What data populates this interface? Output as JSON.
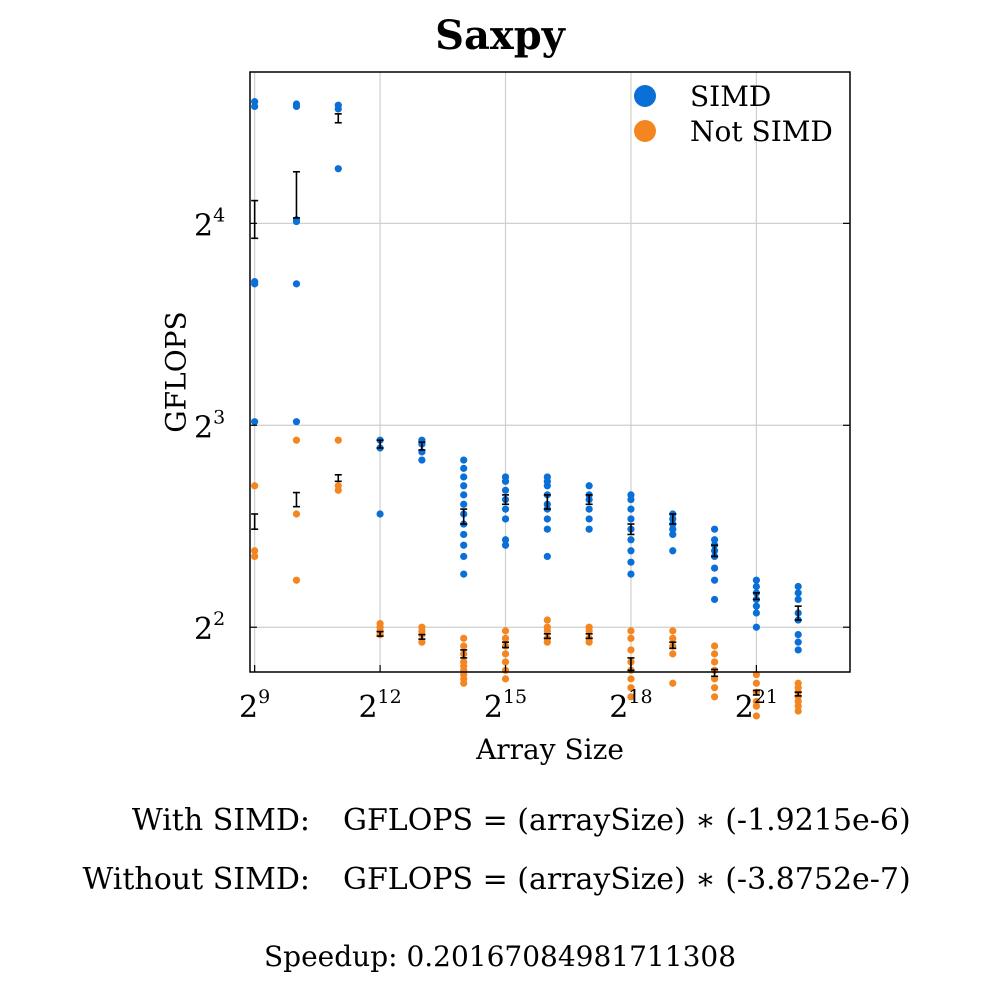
{
  "chart_data": {
    "type": "scatter",
    "title": "Saxpy",
    "xlabel": "Array Size",
    "ylabel": "GFLOPS",
    "x_scale": "log2",
    "y_scale": "log2",
    "xlim": [
      474,
      9900000
    ],
    "ylim": [
      3.43,
      26.9
    ],
    "x_ticks": [
      {
        "base": "2",
        "exp": "9",
        "value": 512
      },
      {
        "base": "2",
        "exp": "12",
        "value": 4096
      },
      {
        "base": "2",
        "exp": "15",
        "value": 32768
      },
      {
        "base": "2",
        "exp": "18",
        "value": 262144
      },
      {
        "base": "2",
        "exp": "21",
        "value": 2097152
      }
    ],
    "y_ticks": [
      {
        "base": "2",
        "exp": "2",
        "value": 4
      },
      {
        "base": "2",
        "exp": "3",
        "value": 8
      },
      {
        "base": "2",
        "exp": "4",
        "value": 16
      }
    ],
    "grid": true,
    "legend_position": "top-right",
    "series": [
      {
        "name": "SIMD",
        "color": "#0a6fd6",
        "points": [
          [
            512,
            [
              24.3,
              23.9,
              13.1,
              13.0,
              8.1
            ]
          ],
          [
            1024,
            [
              24.1,
              23.9,
              16.2,
              16.1,
              13.0,
              8.1
            ]
          ],
          [
            2048,
            [
              24.0,
              23.7,
              19.3
            ]
          ],
          [
            4096,
            [
              7.6,
              7.4,
              5.9
            ]
          ],
          [
            8192,
            [
              7.6,
              7.5,
              7.3,
              7.1
            ]
          ],
          [
            16384,
            [
              7.1,
              6.9,
              6.7,
              6.5,
              6.3,
              6.1,
              5.9,
              5.7,
              5.5,
              5.3,
              5.1,
              4.8
            ]
          ],
          [
            32768,
            [
              6.7,
              6.6,
              6.4,
              6.2,
              6.0,
              5.8,
              5.4,
              5.3
            ]
          ],
          [
            65536,
            [
              6.7,
              6.6,
              6.5,
              6.3,
              6.1,
              6.0,
              5.8,
              5.6,
              5.1
            ]
          ],
          [
            131072,
            [
              6.5,
              6.3,
              6.2,
              6.0,
              5.8,
              5.6
            ]
          ],
          [
            262144,
            [
              6.3,
              6.2,
              6.0,
              5.8,
              5.6,
              5.4,
              5.2,
              5.0,
              4.8
            ]
          ],
          [
            524288,
            [
              5.9,
              5.8,
              5.7,
              5.6,
              5.5,
              5.2
            ]
          ],
          [
            1048576,
            [
              5.6,
              5.4,
              5.3,
              5.2,
              5.1,
              4.9,
              4.7,
              4.4
            ]
          ],
          [
            2097152,
            [
              4.7,
              4.6,
              4.5,
              4.4,
              4.3,
              4.2,
              4.0
            ]
          ],
          [
            4194304,
            [
              4.6,
              4.5,
              4.4,
              4.2,
              4.1,
              3.9,
              3.8,
              3.7
            ]
          ]
        ],
        "error_bars": [
          [
            512,
            15.2,
            17.3
          ],
          [
            1024,
            16.3,
            19.1
          ],
          [
            2048,
            22.6,
            23.3
          ],
          [
            4096,
            7.4,
            7.6
          ],
          [
            8192,
            7.35,
            7.55
          ],
          [
            16384,
            5.7,
            6.0
          ],
          [
            32768,
            6.1,
            6.3
          ],
          [
            65536,
            6.0,
            6.3
          ],
          [
            131072,
            6.1,
            6.3
          ],
          [
            262144,
            5.5,
            5.7
          ],
          [
            524288,
            5.7,
            5.9
          ],
          [
            1048576,
            5.1,
            5.3
          ],
          [
            2097152,
            4.4,
            4.5
          ],
          [
            4194304,
            4.1,
            4.3
          ]
        ]
      },
      {
        "name": "Not SIMD",
        "color": "#f38620",
        "points": [
          [
            512,
            [
              6.5,
              5.2,
              5.1
            ]
          ],
          [
            1024,
            [
              7.6,
              5.9,
              4.7
            ]
          ],
          [
            2048,
            [
              7.6,
              6.5,
              6.4
            ]
          ],
          [
            4096,
            [
              4.05,
              4.0,
              3.95,
              3.9
            ]
          ],
          [
            8192,
            [
              4.0,
              3.95,
              3.9,
              3.8
            ]
          ],
          [
            16384,
            [
              3.85,
              3.75,
              3.65,
              3.55,
              3.5,
              3.45,
              3.4,
              3.35,
              3.3
            ]
          ],
          [
            32768,
            [
              3.95,
              3.85,
              3.75,
              3.65,
              3.55,
              3.45,
              3.35
            ]
          ],
          [
            65536,
            [
              4.1,
              4.0,
              3.95,
              3.85,
              3.8
            ]
          ],
          [
            131072,
            [
              4.0,
              3.95,
              3.85,
              3.8
            ]
          ],
          [
            262144,
            [
              3.95,
              3.85,
              3.7,
              3.55,
              3.45,
              3.35,
              3.25,
              3.15
            ]
          ],
          [
            524288,
            [
              3.95,
              3.85,
              3.75,
              3.65,
              3.3
            ]
          ],
          [
            1048576,
            [
              3.75,
              3.65,
              3.55,
              3.45,
              3.35,
              3.25,
              3.15
            ]
          ],
          [
            2097152,
            [
              3.4,
              3.3,
              3.2,
              3.1,
              3.05,
              2.95
            ]
          ],
          [
            4194304,
            [
              3.3,
              3.25,
              3.2,
              3.15,
              3.1,
              3.05,
              3.0
            ]
          ]
        ],
        "error_bars": [
          [
            512,
            5.6,
            5.9
          ],
          [
            1024,
            6.05,
            6.35
          ],
          [
            2048,
            6.6,
            6.75
          ],
          [
            4096,
            3.88,
            3.94
          ],
          [
            8192,
            3.84,
            3.9
          ],
          [
            16384,
            3.6,
            3.7
          ],
          [
            32768,
            3.73,
            3.8
          ],
          [
            65536,
            3.85,
            3.91
          ],
          [
            131072,
            3.85,
            3.91
          ],
          [
            262144,
            3.45,
            3.6
          ],
          [
            524288,
            3.72,
            3.8
          ],
          [
            1048576,
            3.38,
            3.46
          ],
          [
            2097152,
            3.17,
            3.22
          ],
          [
            4194304,
            3.16,
            3.2
          ]
        ]
      }
    ]
  },
  "annotations": {
    "fit_simd_label": "With SIMD:",
    "fit_simd_eq": "GFLOPS = (arraySize) ∗ (-1.9215e-6)",
    "fit_nosimd_label": "Without SIMD:",
    "fit_nosimd_eq": "GFLOPS = (arraySize) ∗ (-3.8752e-7)",
    "speedup": "Speedup: 0.20167084981711308"
  }
}
